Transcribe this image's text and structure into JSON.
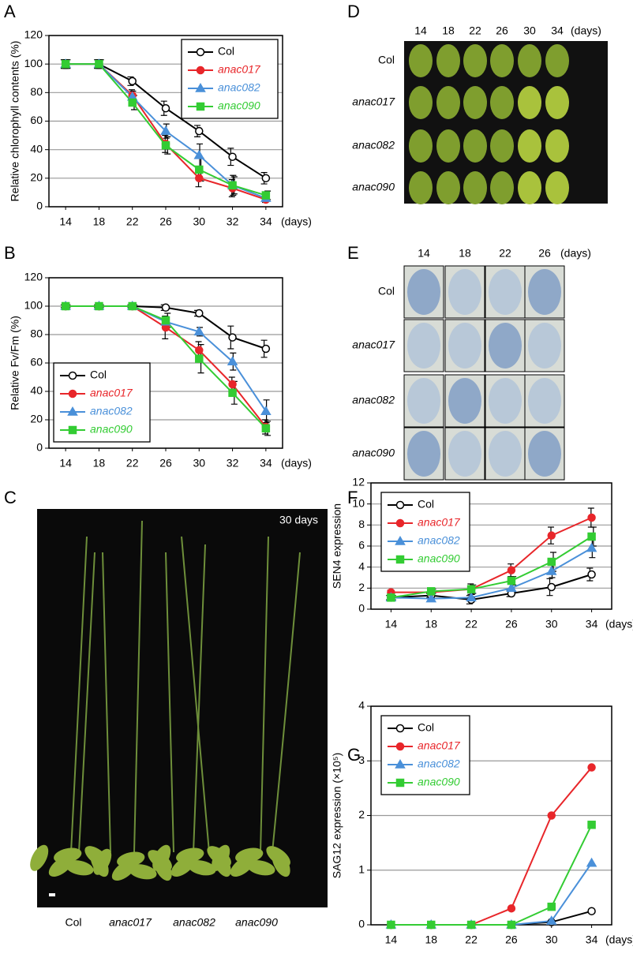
{
  "panel_labels": [
    "A",
    "B",
    "C",
    "D",
    "E",
    "F",
    "G"
  ],
  "chart_data": [
    {
      "type": "line",
      "ylabel": "Relative chlorophyll contents (%)",
      "xlabel": "(days)",
      "categories": [
        "14",
        "18",
        "22",
        "26",
        "30",
        "32",
        "34"
      ],
      "ylim": [
        0,
        120
      ],
      "yticks": [
        0,
        20,
        40,
        60,
        80,
        100,
        120
      ],
      "grid": true,
      "legend": "upper right",
      "series": [
        {
          "name": "Col",
          "color": "#000000",
          "marker": "open-circle",
          "values": [
            100,
            100,
            88,
            69,
            53,
            35,
            20
          ],
          "errors": [
            3,
            3,
            3,
            5,
            4,
            6,
            4
          ]
        },
        {
          "name": "anac017",
          "color": "#e8262a",
          "marker": "circle",
          "values": [
            100,
            100,
            78,
            44,
            20,
            13,
            5
          ],
          "errors": [
            3,
            3,
            4,
            6,
            6,
            6,
            2
          ]
        },
        {
          "name": "anac082",
          "color": "#4a90d9",
          "marker": "triangle",
          "values": [
            100,
            100,
            77,
            53,
            36,
            15,
            6
          ],
          "errors": [
            3,
            3,
            4,
            5,
            8,
            7,
            2
          ]
        },
        {
          "name": "anac090",
          "color": "#33cc33",
          "marker": "square",
          "values": [
            100,
            100,
            73,
            43,
            26,
            15,
            8
          ],
          "errors": [
            3,
            3,
            5,
            6,
            8,
            6,
            3
          ]
        }
      ]
    },
    {
      "type": "line",
      "ylabel": "Relative Fv/Fm (%)",
      "xlabel": "(days)",
      "categories": [
        "14",
        "18",
        "22",
        "26",
        "30",
        "32",
        "34"
      ],
      "ylim": [
        0,
        120
      ],
      "yticks": [
        0,
        20,
        40,
        60,
        80,
        100,
        120
      ],
      "grid": true,
      "legend": "lower left",
      "series": [
        {
          "name": "Col",
          "color": "#000000",
          "marker": "open-circle",
          "values": [
            100,
            100,
            100,
            99,
            95,
            78,
            70
          ],
          "errors": [
            1,
            1,
            1,
            2,
            2,
            8,
            6
          ]
        },
        {
          "name": "anac017",
          "color": "#e8262a",
          "marker": "circle",
          "values": [
            100,
            100,
            100,
            85,
            69,
            45,
            15
          ],
          "errors": [
            1,
            1,
            1,
            8,
            6,
            5,
            5
          ]
        },
        {
          "name": "anac082",
          "color": "#4a90d9",
          "marker": "triangle",
          "values": [
            100,
            100,
            100,
            89,
            82,
            61,
            26
          ],
          "errors": [
            1,
            1,
            1,
            3,
            3,
            6,
            8
          ]
        },
        {
          "name": "anac090",
          "color": "#33cc33",
          "marker": "square",
          "values": [
            100,
            100,
            100,
            90,
            63,
            39,
            14
          ],
          "errors": [
            1,
            1,
            1,
            5,
            10,
            8,
            5
          ]
        }
      ]
    },
    {
      "type": "line",
      "ylabel": "SEN4 expression",
      "xlabel": "(days)",
      "categories": [
        "14",
        "18",
        "22",
        "26",
        "30",
        "34"
      ],
      "ylim": [
        0,
        12
      ],
      "yticks": [
        0,
        2,
        4,
        6,
        8,
        10,
        12
      ],
      "grid": true,
      "legend": "upper left",
      "series": [
        {
          "name": "Col",
          "color": "#000000",
          "marker": "open-circle",
          "values": [
            1.1,
            1.3,
            0.9,
            1.5,
            2.1,
            3.3
          ],
          "errors": [
            0.2,
            0.2,
            0.4,
            0.3,
            0.8,
            0.6
          ]
        },
        {
          "name": "anac017",
          "color": "#e8262a",
          "marker": "circle",
          "values": [
            1.6,
            1.6,
            1.9,
            3.7,
            7,
            8.7
          ],
          "errors": [
            0.2,
            0.2,
            0.5,
            0.6,
            0.8,
            0.9
          ]
        },
        {
          "name": "anac082",
          "color": "#4a90d9",
          "marker": "triangle",
          "values": [
            1.1,
            1.0,
            1.1,
            2.0,
            3.6,
            5.8
          ],
          "errors": [
            0.2,
            0.2,
            0.3,
            0.5,
            0.6,
            0.9
          ]
        },
        {
          "name": "anac090",
          "color": "#33cc33",
          "marker": "square",
          "values": [
            1.1,
            1.7,
            1.9,
            2.7,
            4.5,
            6.9
          ],
          "errors": [
            0.2,
            0.2,
            0.4,
            0.4,
            0.9,
            0.9
          ]
        }
      ]
    },
    {
      "type": "line",
      "ylabel": "SAG12 expression (×10⁵)",
      "xlabel": "(days)",
      "categories": [
        "14",
        "18",
        "22",
        "26",
        "30",
        "34"
      ],
      "ylim": [
        0,
        4
      ],
      "yticks": [
        0,
        1,
        2,
        3,
        4
      ],
      "grid": true,
      "legend": "upper left",
      "series": [
        {
          "name": "Col",
          "color": "#000000",
          "marker": "open-circle",
          "values": [
            0,
            0,
            0,
            0,
            0.05,
            0.25
          ]
        },
        {
          "name": "anac017",
          "color": "#e8262a",
          "marker": "circle",
          "values": [
            0,
            0,
            0,
            0.3,
            2,
            2.88
          ]
        },
        {
          "name": "anac082",
          "color": "#4a90d9",
          "marker": "triangle",
          "values": [
            0,
            0,
            0,
            0,
            0.07,
            1.13
          ]
        },
        {
          "name": "anac090",
          "color": "#33cc33",
          "marker": "square",
          "values": [
            0,
            0,
            0,
            0,
            0.33,
            1.83
          ]
        }
      ]
    }
  ],
  "photo_c": {
    "label": "30 days",
    "genotypes": [
      "Col",
      "anac017",
      "anac082",
      "anac090"
    ]
  },
  "photo_d": {
    "days": [
      "14",
      "18",
      "22",
      "26",
      "30",
      "34"
    ],
    "unit": "(days)",
    "genotypes": [
      "Col",
      "anac017",
      "anac082",
      "anac090"
    ]
  },
  "photo_e": {
    "days": [
      "14",
      "18",
      "22",
      "26"
    ],
    "unit": "(days)",
    "genotypes": [
      "Col",
      "anac017",
      "anac082",
      "anac090"
    ]
  }
}
